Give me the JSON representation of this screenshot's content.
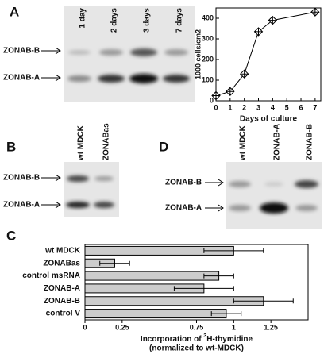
{
  "panels": {
    "A": {
      "letter": "A",
      "lanes": [
        "1 day",
        "2 days",
        "3 days",
        "7 days"
      ],
      "bands": [
        "ZONAB-B",
        "ZONAB-A"
      ]
    },
    "B": {
      "letter": "B",
      "lanes": [
        "wt MDCK",
        "ZONABas"
      ],
      "bands": [
        "ZONAB-B",
        "ZONAB-A"
      ]
    },
    "C": {
      "letter": "C"
    },
    "D": {
      "letter": "D",
      "lanes": [
        "wt MDCK",
        "ZONAB-A",
        "ZONAB-B"
      ],
      "bands": [
        "ZONAB-B",
        "ZONAB-A"
      ]
    }
  },
  "chart_data": [
    {
      "type": "line",
      "xlabel": "Days of culture",
      "ylabel": "1000 cells/cm2",
      "x": [
        0,
        1,
        2,
        3,
        4,
        7
      ],
      "values": [
        25,
        45,
        130,
        335,
        390,
        430
      ],
      "errors": [
        10,
        10,
        12,
        12,
        10,
        10
      ],
      "color": "#000000",
      "xlim": [
        0,
        7.4
      ],
      "ylim": [
        0,
        450
      ],
      "xticks": [
        0,
        1,
        2,
        3,
        4,
        5,
        6,
        7
      ],
      "yticks": [
        0,
        100,
        200,
        300,
        400
      ]
    },
    {
      "type": "barh",
      "categories": [
        "wt MDCK",
        "ZONABas",
        "control msRNA",
        "ZONAB-A",
        "ZONAB-B",
        "control V"
      ],
      "values": [
        1,
        0.2,
        0.9,
        0.8,
        1.2,
        0.95
      ],
      "errors": [
        0.2,
        0.1,
        0.1,
        0.2,
        0.2,
        0.1
      ],
      "color": "#cccccc",
      "xlim": [
        0,
        1.5
      ],
      "xticks": [
        0,
        0.25,
        0.75,
        1,
        1.25
      ],
      "xlabel": [
        "Incorporation of ",
        "3",
        "H-thymidine"
      ],
      "xlabel_line2": "(normalized to wt-MDCK)"
    }
  ]
}
